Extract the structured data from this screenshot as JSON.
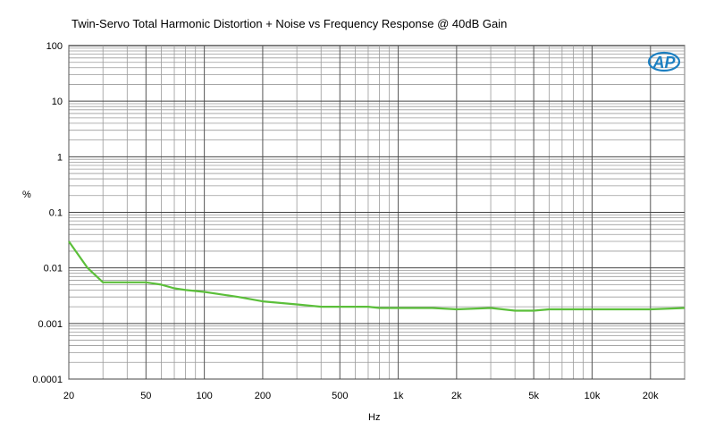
{
  "chart_data": {
    "type": "line",
    "title": "Twin-Servo Total Harmonic Distortion + Noise vs Frequency Response @ 40dB Gain",
    "xlabel": "Hz",
    "ylabel": "%",
    "x_scale": "log",
    "y_scale": "log",
    "xlim": [
      20,
      30000
    ],
    "ylim": [
      0.0001,
      100
    ],
    "x_ticks": [
      {
        "value": 20,
        "label": "20"
      },
      {
        "value": 50,
        "label": "50"
      },
      {
        "value": 100,
        "label": "100"
      },
      {
        "value": 200,
        "label": "200"
      },
      {
        "value": 500,
        "label": "500"
      },
      {
        "value": 1000,
        "label": "1k"
      },
      {
        "value": 2000,
        "label": "2k"
      },
      {
        "value": 5000,
        "label": "5k"
      },
      {
        "value": 10000,
        "label": "10k"
      },
      {
        "value": 20000,
        "label": "20k"
      }
    ],
    "y_ticks": [
      {
        "value": 100,
        "label": "100"
      },
      {
        "value": 10,
        "label": "10"
      },
      {
        "value": 1,
        "label": "1"
      },
      {
        "value": 0.1,
        "label": "0.1"
      },
      {
        "value": 0.01,
        "label": "0.01"
      },
      {
        "value": 0.001,
        "label": "0.001"
      },
      {
        "value": 0.0001,
        "label": "0.0001"
      }
    ],
    "grid": true,
    "series": [
      {
        "color": "#5bbf3a",
        "x": [
          20,
          25,
          30,
          40,
          50,
          60,
          70,
          80,
          100,
          150,
          200,
          300,
          400,
          500,
          600,
          700,
          800,
          1000,
          1500,
          2000,
          3000,
          4000,
          5000,
          6000,
          8000,
          10000,
          15000,
          20000,
          30000
        ],
        "y": [
          0.03,
          0.01,
          0.0055,
          0.0055,
          0.0055,
          0.005,
          0.0043,
          0.004,
          0.0037,
          0.003,
          0.0025,
          0.0022,
          0.002,
          0.002,
          0.002,
          0.002,
          0.0019,
          0.0019,
          0.0019,
          0.0018,
          0.0019,
          0.0017,
          0.0017,
          0.0018,
          0.0018,
          0.0018,
          0.0018,
          0.0018,
          0.0019
        ]
      }
    ]
  },
  "logo": {
    "text": "AP",
    "color": "#1c7fc1"
  }
}
